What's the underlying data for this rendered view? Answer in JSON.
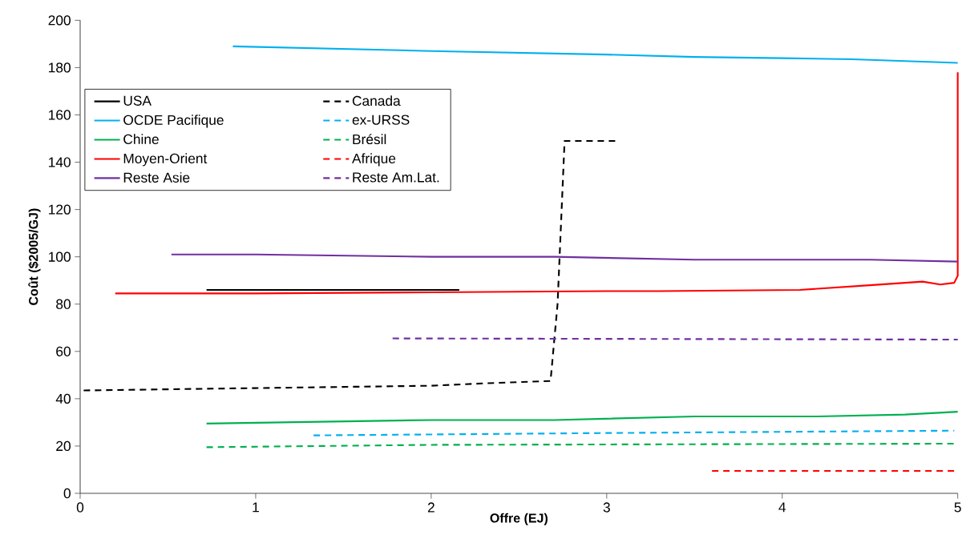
{
  "chart_data": {
    "type": "line",
    "xlabel": "Offre (EJ)",
    "ylabel": "Coût ($2005/GJ)",
    "xlim": [
      0,
      5
    ],
    "ylim": [
      0,
      200
    ],
    "xticks": [
      0,
      1,
      2,
      3,
      4,
      5
    ],
    "yticks": [
      0,
      20,
      40,
      60,
      80,
      100,
      120,
      140,
      160,
      180,
      200
    ],
    "legend": "top left",
    "marker": "none",
    "series": [
      {
        "name": "USA",
        "color": "#000000",
        "line_style": "solid",
        "x": [
          0.72,
          2.16
        ],
        "values": [
          86,
          86
        ]
      },
      {
        "name": "Canada",
        "color": "#000000",
        "line_style": "dashed",
        "x": [
          0.02,
          1,
          2,
          2.3,
          2.68,
          2.72,
          2.76,
          3.05
        ],
        "values": [
          43.5,
          44.5,
          45.5,
          46.5,
          47.5,
          80,
          149,
          149
        ]
      },
      {
        "name": "OCDE Pacifique",
        "color": "#00b0f0",
        "line_style": "solid",
        "x": [
          0.87,
          2,
          3,
          3.5,
          4,
          4.4,
          5
        ],
        "values": [
          189,
          187,
          185.5,
          184.5,
          184,
          183.5,
          182
        ]
      },
      {
        "name": "ex-URSS",
        "color": "#00b0f0",
        "line_style": "dashed",
        "x": [
          1.33,
          3,
          4.98
        ],
        "values": [
          24.5,
          25.5,
          26.5
        ]
      },
      {
        "name": "Chine",
        "color": "#00b050",
        "line_style": "solid",
        "x": [
          0.72,
          2,
          2.7,
          3.5,
          4.2,
          4.7,
          5
        ],
        "values": [
          29.5,
          31,
          31,
          32.5,
          32.5,
          33.3,
          34.5
        ]
      },
      {
        "name": "Brésil",
        "color": "#00b050",
        "line_style": "dashed",
        "x": [
          0.72,
          2,
          5
        ],
        "values": [
          19.5,
          20.5,
          21
        ]
      },
      {
        "name": "Moyen-Orient",
        "color": "#ff0000",
        "line_style": "solid",
        "x": [
          0.2,
          1,
          2,
          3,
          3.3,
          4.1,
          4.5,
          4.8,
          4.9,
          4.98,
          5,
          5
        ],
        "values": [
          84.5,
          84.5,
          85,
          85.5,
          85.5,
          86,
          88,
          89.5,
          88.3,
          89,
          92,
          178
        ]
      },
      {
        "name": "Afrique",
        "color": "#ff0000",
        "line_style": "dashed",
        "x": [
          3.6,
          5
        ],
        "values": [
          9.5,
          9.5
        ]
      },
      {
        "name": "Reste Asie",
        "color": "#7030a0",
        "line_style": "solid",
        "x": [
          0.52,
          1,
          2,
          2.7,
          3.5,
          4.5,
          5
        ],
        "values": [
          101,
          101,
          100,
          100,
          98.8,
          98.8,
          98
        ]
      },
      {
        "name": "Reste Am.Lat.",
        "color": "#7030a0",
        "line_style": "dashed",
        "x": [
          1.78,
          5
        ],
        "values": [
          65.5,
          65
        ]
      }
    ]
  }
}
